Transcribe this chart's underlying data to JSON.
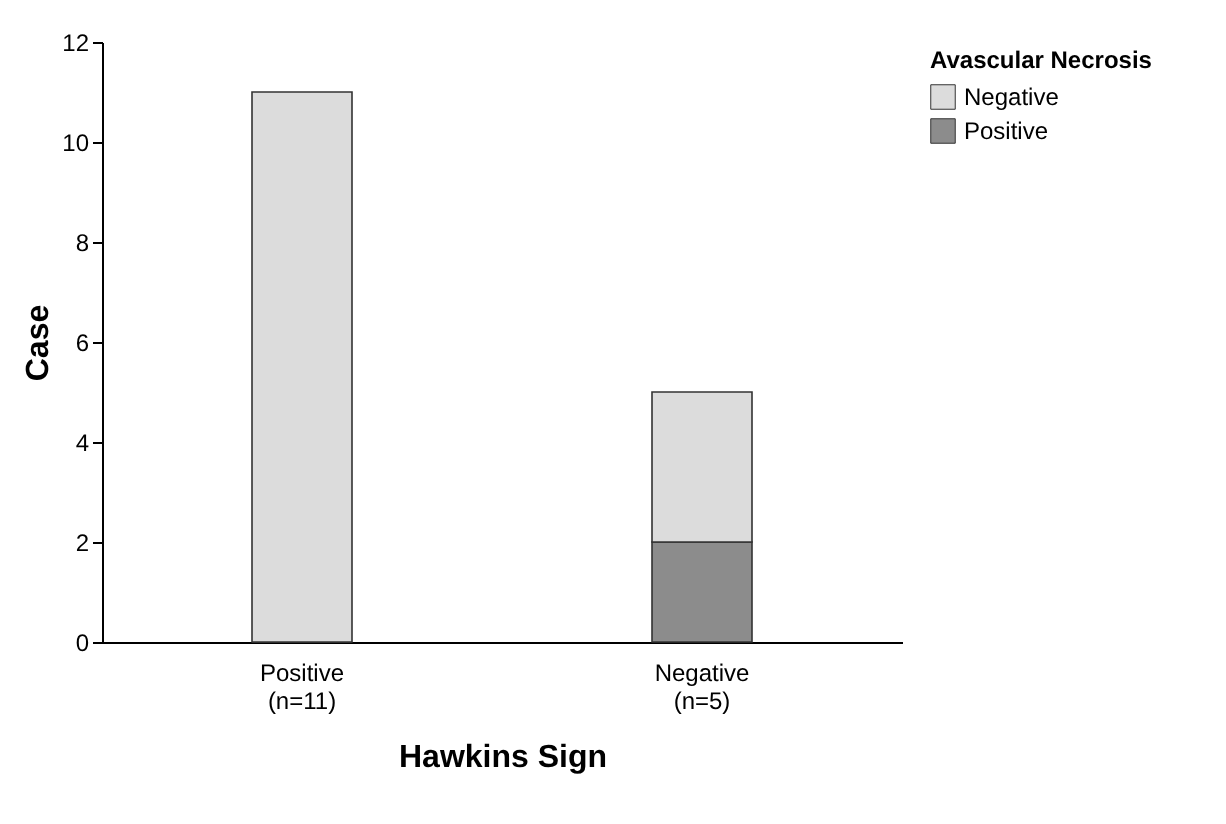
{
  "chart_data": {
    "type": "bar",
    "xlabel": "Hawkins Sign",
    "ylabel": "Case",
    "legend_title": "Avascular Necrosis",
    "categories": [
      "Positive (n=11)",
      "Negative (n=5)"
    ],
    "stacked": true,
    "legend": "right",
    "grid": false,
    "ylim": [
      0,
      12
    ],
    "yticks": [
      0,
      2,
      4,
      6,
      8,
      10,
      12
    ],
    "series": [
      {
        "name": "Positive",
        "color": "#8c8c8c",
        "values": [
          0,
          2
        ]
      },
      {
        "name": "Negative",
        "color": "#dcdcdc",
        "values": [
          11,
          3
        ]
      }
    ]
  }
}
